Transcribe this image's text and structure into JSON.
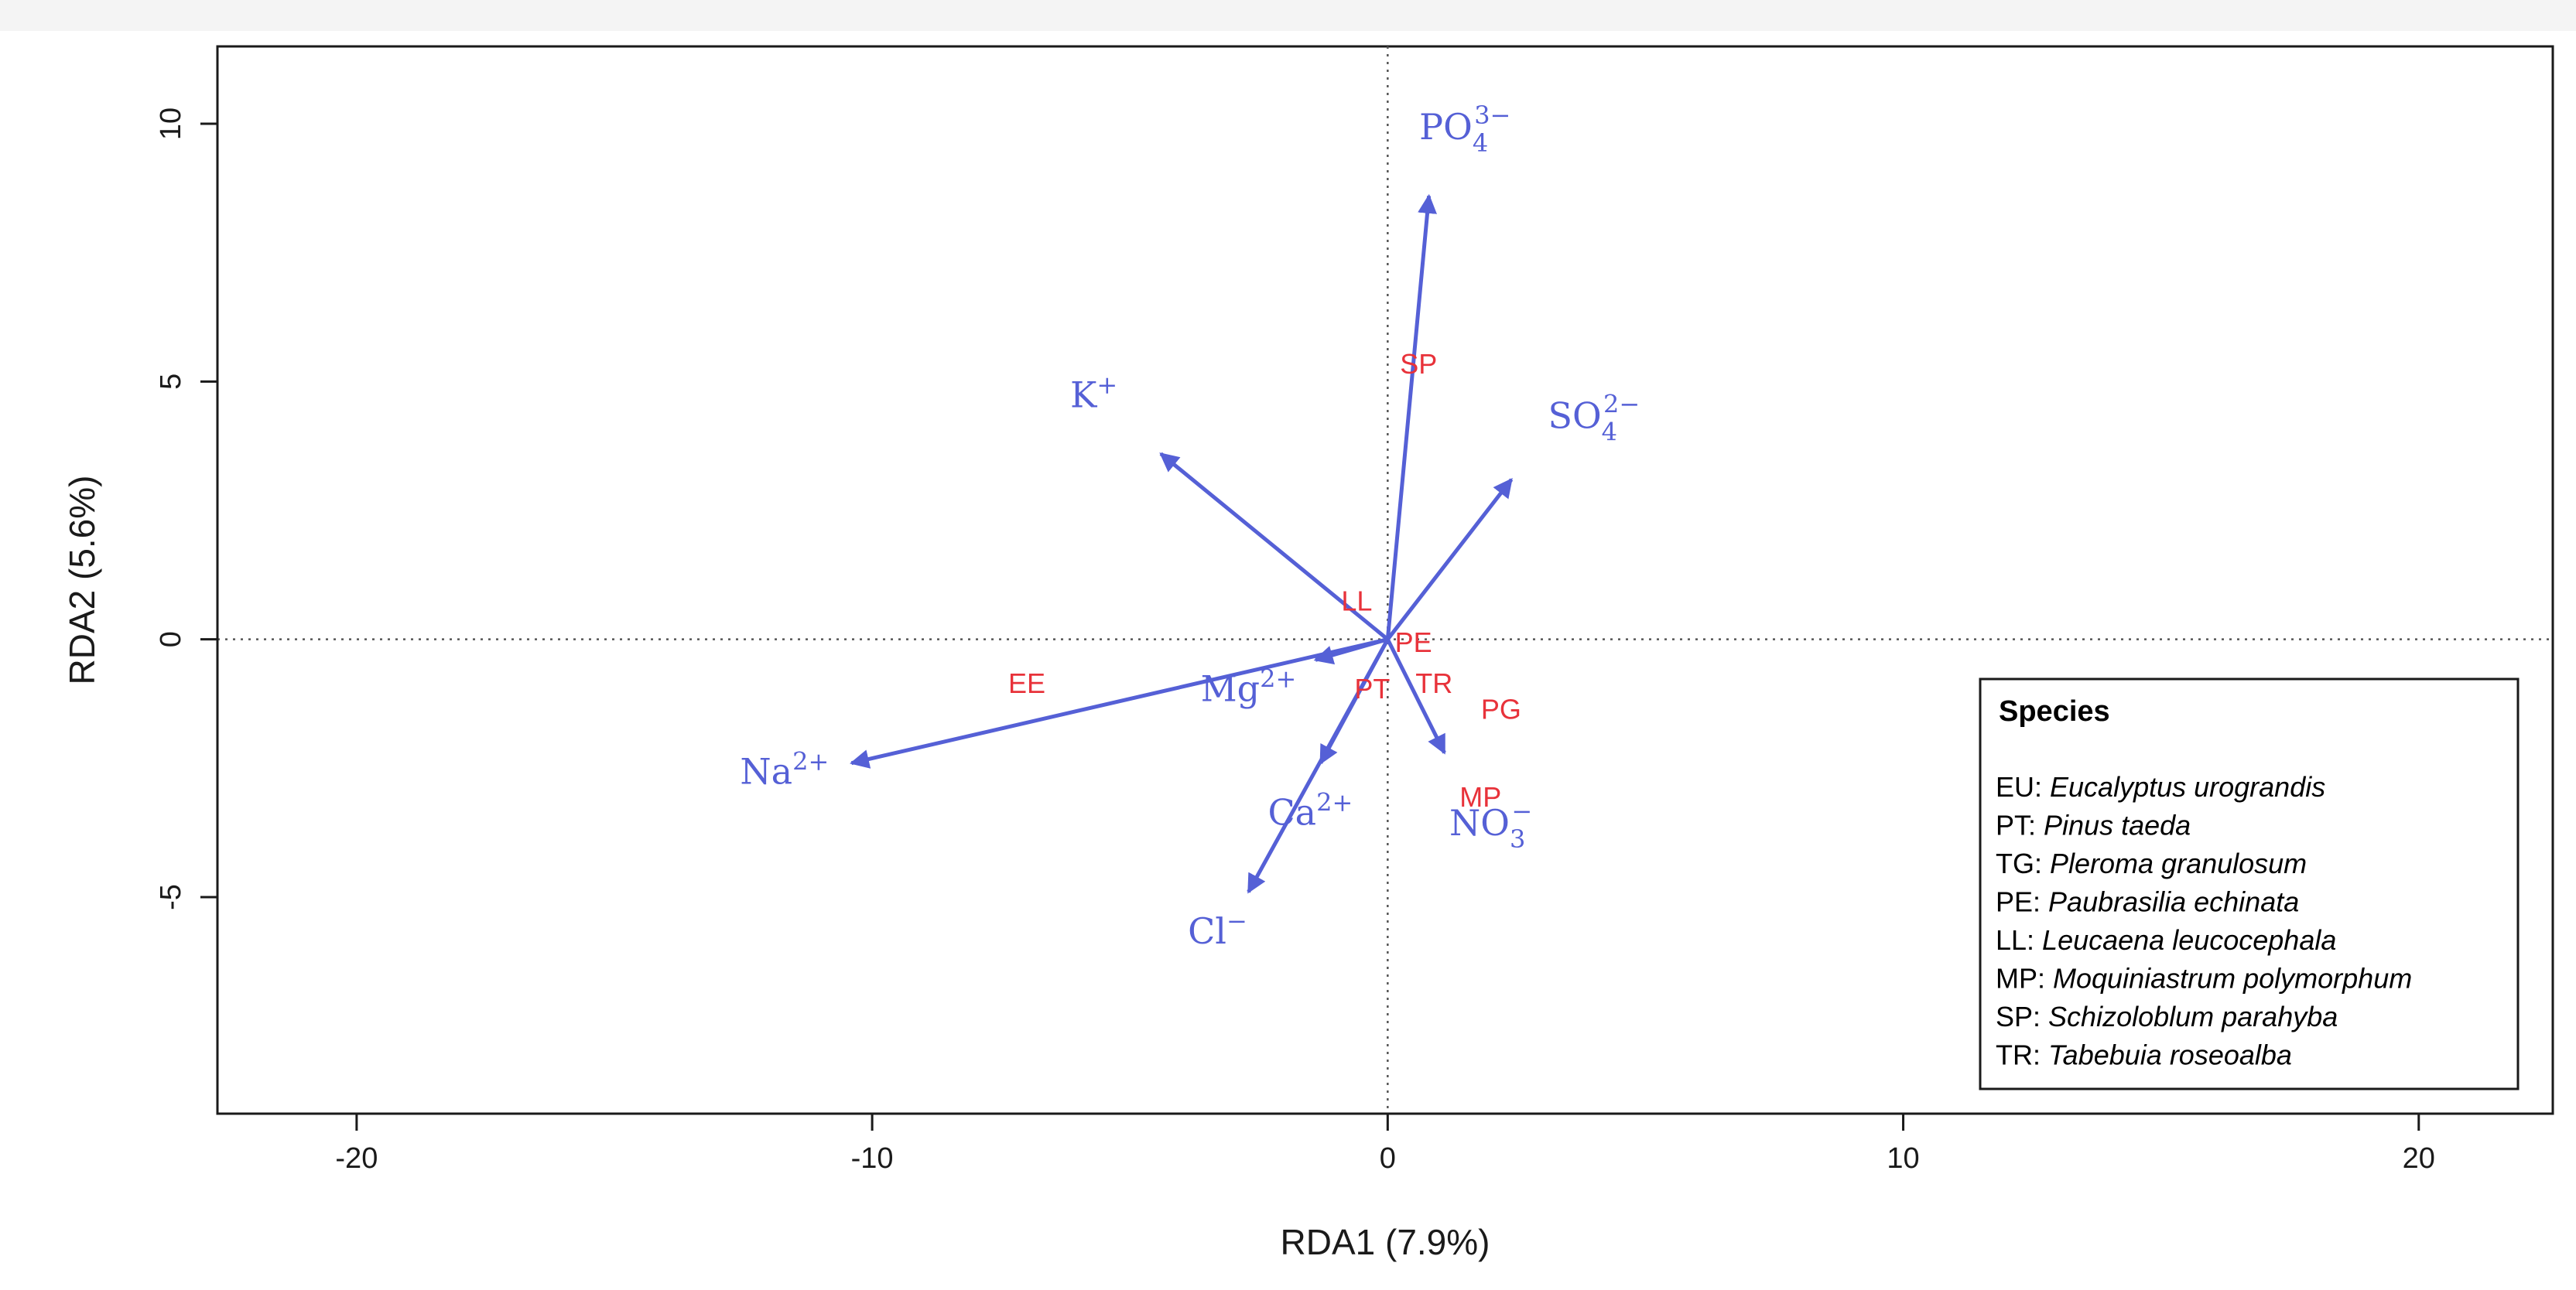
{
  "chart_data": {
    "type": "scatter",
    "subtype": "rda-biplot",
    "xlabel": "RDA1 (7.9%)",
    "ylabel": "RDA2 (5.6%)",
    "xlim": [
      -22.7,
      22.6
    ],
    "ylim": [
      -9.2,
      11.5
    ],
    "xticks": [
      -20,
      -10,
      0,
      10,
      20
    ],
    "yticks": [
      -5,
      0,
      5,
      10
    ],
    "reference_lines": {
      "x": 0,
      "y": 0,
      "style": "dotted"
    },
    "colors": {
      "arrows": "#5560d6",
      "arrow_labels": "#5560d6",
      "sites": "#e8323a",
      "axis": "#1a1a1a"
    },
    "sites": [
      {
        "label": "SP",
        "x": 0.6,
        "y": 5.3
      },
      {
        "label": "LL",
        "x": -0.6,
        "y": 0.7
      },
      {
        "label": "PE",
        "x": 0.5,
        "y": -0.1
      },
      {
        "label": "EE",
        "x": -7.0,
        "y": -0.9
      },
      {
        "label": "PT",
        "x": -0.3,
        "y": -1.0
      },
      {
        "label": "TR",
        "x": 0.9,
        "y": -0.9
      },
      {
        "label": "PG",
        "x": 2.2,
        "y": -1.4
      },
      {
        "label": "MP",
        "x": 1.8,
        "y": -3.1
      }
    ],
    "arrows": [
      {
        "var": "PO4",
        "base": "PO",
        "sup": "3−",
        "sub": "4",
        "x": 0.8,
        "y": 8.6,
        "lx": 1.5,
        "ly": 9.7
      },
      {
        "var": "K",
        "base": "K",
        "sup": "+",
        "sub": "",
        "x": -4.4,
        "y": 3.6,
        "lx": -5.7,
        "ly": 4.5
      },
      {
        "var": "SO4",
        "base": "SO",
        "sup": "2−",
        "sub": "4",
        "x": 2.4,
        "y": 3.1,
        "lx": 4.0,
        "ly": 4.1
      },
      {
        "var": "Na",
        "base": "Na",
        "sup": "2+",
        "sub": "",
        "x": -10.4,
        "y": -2.4,
        "lx": -11.7,
        "ly": -2.8
      },
      {
        "var": "Mg",
        "base": "Mg",
        "sup": "2+",
        "sub": "",
        "x": -1.4,
        "y": -0.4,
        "lx": -2.7,
        "ly": -1.2
      },
      {
        "var": "Ca",
        "base": "Ca",
        "sup": "2+",
        "sub": "",
        "x": -1.3,
        "y": -2.4,
        "lx": -1.5,
        "ly": -3.6
      },
      {
        "var": "NO3",
        "base": "NO",
        "sup": "−",
        "sub": "3",
        "x": 1.1,
        "y": -2.2,
        "lx": 2.0,
        "ly": -3.8
      },
      {
        "var": "Cl",
        "base": "Cl",
        "sup": "−",
        "sub": "",
        "x": -2.7,
        "y": -4.9,
        "lx": -3.3,
        "ly": -5.9
      }
    ]
  },
  "legend": {
    "title": "Species",
    "entries": [
      {
        "code": "EU:",
        "name": "Eucalyptus urograndis"
      },
      {
        "code": "PT:",
        "name": "Pinus taeda"
      },
      {
        "code": "TG:",
        "name": "Pleroma granulosum"
      },
      {
        "code": "PE:",
        "name": "Paubrasilia echinata"
      },
      {
        "code": "LL:",
        "name": "Leucaena leucocephala"
      },
      {
        "code": "MP:",
        "name": "Moquiniastrum polymorphum"
      },
      {
        "code": "SP:",
        "name": "Schizoloblum parahyba"
      },
      {
        "code": "TR:",
        "name": "Tabebuia roseoalba"
      }
    ]
  }
}
